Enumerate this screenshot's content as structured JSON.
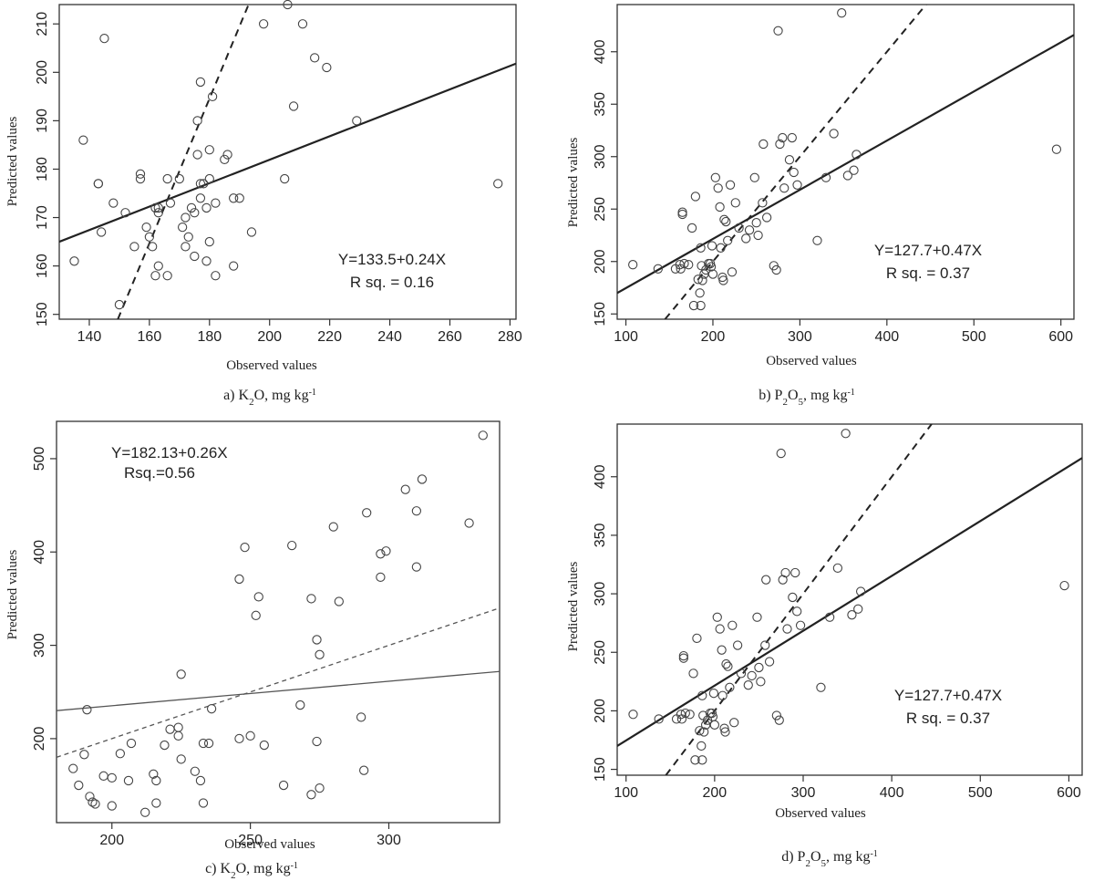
{
  "chart_data": [
    {
      "type": "scatter",
      "panel": "a",
      "caption": {
        "pre": "a) K",
        "sub": "2",
        "mid": "O, mg kg",
        "sup": "-1"
      },
      "xlabel": "Observed values",
      "ylabel": "Predicted values",
      "xlim": [
        130,
        282
      ],
      "ylim": [
        149,
        214
      ],
      "xticks": [
        140,
        160,
        180,
        200,
        220,
        240,
        260,
        280
      ],
      "yticks": [
        150,
        160,
        170,
        180,
        190,
        200,
        210
      ],
      "equation": [
        "Y=133.5+0.24X",
        "R sq. = 0.16"
      ],
      "fit_line": {
        "style": "solid",
        "points": [
          [
            130,
            165.0
          ],
          [
            282,
            201.8
          ]
        ]
      },
      "reference_line": {
        "style": "dashed",
        "points": [
          [
            149.5,
            149.0
          ],
          [
            193.0,
            214.0
          ]
        ]
      },
      "points": [
        [
          135,
          161
        ],
        [
          138,
          186
        ],
        [
          143,
          177
        ],
        [
          143,
          177
        ],
        [
          144,
          167
        ],
        [
          145,
          207
        ],
        [
          148,
          173
        ],
        [
          150,
          152
        ],
        [
          152,
          171
        ],
        [
          155,
          164
        ],
        [
          157,
          178
        ],
        [
          157,
          179
        ],
        [
          159,
          168
        ],
        [
          160,
          166
        ],
        [
          161,
          164
        ],
        [
          162,
          172
        ],
        [
          162,
          158
        ],
        [
          163,
          160
        ],
        [
          163,
          171
        ],
        [
          163,
          172
        ],
        [
          166,
          178
        ],
        [
          166,
          158
        ],
        [
          167,
          173
        ],
        [
          170,
          178
        ],
        [
          171,
          168
        ],
        [
          172,
          164
        ],
        [
          172,
          170
        ],
        [
          173,
          166
        ],
        [
          174,
          172
        ],
        [
          175,
          171
        ],
        [
          175,
          162
        ],
        [
          176,
          183
        ],
        [
          176,
          190
        ],
        [
          177,
          198
        ],
        [
          177,
          177
        ],
        [
          177,
          174
        ],
        [
          178,
          177
        ],
        [
          179,
          172
        ],
        [
          179,
          161
        ],
        [
          180,
          165
        ],
        [
          180,
          178
        ],
        [
          180,
          184
        ],
        [
          181,
          195
        ],
        [
          182,
          158
        ],
        [
          182,
          173
        ],
        [
          185,
          182
        ],
        [
          186,
          183
        ],
        [
          188,
          174
        ],
        [
          188,
          160
        ],
        [
          190,
          174
        ],
        [
          194,
          167
        ],
        [
          198,
          210
        ],
        [
          205,
          178
        ],
        [
          206,
          214
        ],
        [
          208,
          193
        ],
        [
          211,
          210
        ],
        [
          215,
          203
        ],
        [
          219,
          201
        ],
        [
          229,
          190
        ],
        [
          276,
          177
        ]
      ]
    },
    {
      "type": "scatter",
      "panel": "b",
      "caption": {
        "pre": "b) P",
        "sub": "2",
        "mid": "O",
        "sub2": "5",
        "post": ", mg kg",
        "sup": "-1"
      },
      "xlabel": "Observed values",
      "ylabel": "Predicted values",
      "xlim": [
        90,
        615
      ],
      "ylim": [
        145,
        445
      ],
      "xticks": [
        100,
        200,
        300,
        400,
        500,
        600
      ],
      "yticks": [
        150,
        200,
        250,
        300,
        350,
        400
      ],
      "equation": [
        "Y=127.7+0.47X",
        "R sq. = 0.37"
      ],
      "fit_line": {
        "style": "solid",
        "points": [
          [
            90,
            170.0
          ],
          [
            615,
            416.0
          ]
        ]
      },
      "reference_line": {
        "style": "dashed",
        "points": [
          [
            145,
            145.0
          ],
          [
            445,
            445.0
          ]
        ]
      },
      "points": [
        [
          108,
          197
        ],
        [
          137,
          193
        ],
        [
          157,
          193
        ],
        [
          162,
          197
        ],
        [
          163,
          193
        ],
        [
          165,
          247
        ],
        [
          165,
          245
        ],
        [
          167,
          198
        ],
        [
          172,
          197
        ],
        [
          176,
          232
        ],
        [
          178,
          158
        ],
        [
          180,
          262
        ],
        [
          183,
          183
        ],
        [
          185,
          170
        ],
        [
          186,
          158
        ],
        [
          186,
          213
        ],
        [
          187,
          196
        ],
        [
          188,
          182
        ],
        [
          190,
          188
        ],
        [
          192,
          192
        ],
        [
          195,
          198
        ],
        [
          197,
          198
        ],
        [
          198,
          195
        ],
        [
          199,
          215
        ],
        [
          200,
          188
        ],
        [
          203,
          280
        ],
        [
          206,
          270
        ],
        [
          208,
          252
        ],
        [
          209,
          213
        ],
        [
          211,
          185
        ],
        [
          212,
          182
        ],
        [
          213,
          240
        ],
        [
          215,
          238
        ],
        [
          217,
          220
        ],
        [
          220,
          273
        ],
        [
          222,
          190
        ],
        [
          226,
          256
        ],
        [
          230,
          232
        ],
        [
          238,
          222
        ],
        [
          242,
          230
        ],
        [
          248,
          280
        ],
        [
          250,
          237
        ],
        [
          252,
          225
        ],
        [
          257,
          256
        ],
        [
          258,
          312
        ],
        [
          262,
          242
        ],
        [
          270,
          196
        ],
        [
          273,
          192
        ],
        [
          275,
          420
        ],
        [
          277,
          312
        ],
        [
          280,
          318
        ],
        [
          282,
          270
        ],
        [
          288,
          297
        ],
        [
          291,
          318
        ],
        [
          293,
          285
        ],
        [
          297,
          273
        ],
        [
          320,
          220
        ],
        [
          330,
          280
        ],
        [
          339,
          322
        ],
        [
          348,
          437
        ],
        [
          355,
          282
        ],
        [
          362,
          287
        ],
        [
          365,
          302
        ],
        [
          595,
          307
        ]
      ]
    },
    {
      "type": "scatter",
      "panel": "c",
      "caption": {
        "pre": "c) K",
        "sub": "2",
        "mid": "O, mg kg",
        "sup": "-1"
      },
      "xlabel": "Observed values",
      "ylabel": "Predicted values",
      "xlim": [
        180,
        340
      ],
      "ylim": [
        110,
        540
      ],
      "xticks": [
        200,
        250,
        300
      ],
      "yticks": [
        200,
        300,
        400,
        500
      ],
      "equation": [
        "Y=182.13+0.26X",
        "Rsq.=0.56"
      ],
      "fit_line": {
        "style": "solid",
        "points": [
          [
            180,
            230.0
          ],
          [
            340,
            272.0
          ]
        ]
      },
      "reference_line": {
        "style": "dashed",
        "points": [
          [
            180,
            180.0
          ],
          [
            340,
            340.0
          ]
        ]
      },
      "points": [
        [
          186,
          168
        ],
        [
          188,
          150
        ],
        [
          190,
          183
        ],
        [
          191,
          231
        ],
        [
          192,
          138
        ],
        [
          193,
          132
        ],
        [
          194,
          130
        ],
        [
          197,
          160
        ],
        [
          200,
          158
        ],
        [
          200,
          128
        ],
        [
          203,
          184
        ],
        [
          206,
          155
        ],
        [
          207,
          195
        ],
        [
          212,
          121
        ],
        [
          215,
          162
        ],
        [
          216,
          131
        ],
        [
          216,
          155
        ],
        [
          219,
          193
        ],
        [
          221,
          210
        ],
        [
          224,
          203
        ],
        [
          224,
          212
        ],
        [
          225,
          178
        ],
        [
          225,
          269
        ],
        [
          230,
          165
        ],
        [
          232,
          155
        ],
        [
          233,
          195
        ],
        [
          233,
          131
        ],
        [
          235,
          195
        ],
        [
          236,
          232
        ],
        [
          246,
          200
        ],
        [
          246,
          371
        ],
        [
          248,
          405
        ],
        [
          250,
          203
        ],
        [
          252,
          332
        ],
        [
          253,
          352
        ],
        [
          255,
          193
        ],
        [
          262,
          150
        ],
        [
          265,
          407
        ],
        [
          268,
          236
        ],
        [
          272,
          140
        ],
        [
          272,
          350
        ],
        [
          274,
          197
        ],
        [
          274,
          306
        ],
        [
          275,
          290
        ],
        [
          275,
          147
        ],
        [
          280,
          427
        ],
        [
          282,
          347
        ],
        [
          290,
          223
        ],
        [
          291,
          166
        ],
        [
          292,
          442
        ],
        [
          297,
          373
        ],
        [
          297,
          398
        ],
        [
          299,
          401
        ],
        [
          306,
          467
        ],
        [
          310,
          444
        ],
        [
          310,
          384
        ],
        [
          312,
          478
        ],
        [
          329,
          431
        ],
        [
          334,
          525
        ]
      ]
    },
    {
      "type": "scatter",
      "panel": "d",
      "caption": {
        "pre": "d) P",
        "sub": "2",
        "mid": "O",
        "sub2": "5",
        "post": ", mg kg",
        "sup": "-1"
      },
      "xlabel": "Observed values",
      "ylabel": "Predicted values",
      "xlim": [
        90,
        615
      ],
      "ylim": [
        145,
        445
      ],
      "xticks": [
        100,
        200,
        300,
        400,
        500,
        600
      ],
      "yticks": [
        150,
        200,
        250,
        300,
        350,
        400
      ],
      "equation": [
        "Y=127.7+0.47X",
        "R sq. = 0.37"
      ],
      "fit_line": {
        "style": "solid",
        "points": [
          [
            90,
            170.0
          ],
          [
            615,
            416.0
          ]
        ]
      },
      "reference_line": {
        "style": "dashed",
        "points": [
          [
            145,
            145.0
          ],
          [
            445,
            445.0
          ]
        ]
      },
      "points": [
        [
          108,
          197
        ],
        [
          137,
          193
        ],
        [
          157,
          193
        ],
        [
          162,
          197
        ],
        [
          163,
          193
        ],
        [
          165,
          247
        ],
        [
          165,
          245
        ],
        [
          167,
          198
        ],
        [
          172,
          197
        ],
        [
          176,
          232
        ],
        [
          178,
          158
        ],
        [
          180,
          262
        ],
        [
          183,
          183
        ],
        [
          185,
          170
        ],
        [
          186,
          158
        ],
        [
          186,
          213
        ],
        [
          187,
          196
        ],
        [
          188,
          182
        ],
        [
          190,
          188
        ],
        [
          192,
          192
        ],
        [
          195,
          198
        ],
        [
          197,
          198
        ],
        [
          198,
          195
        ],
        [
          199,
          215
        ],
        [
          200,
          188
        ],
        [
          203,
          280
        ],
        [
          206,
          270
        ],
        [
          208,
          252
        ],
        [
          209,
          213
        ],
        [
          211,
          185
        ],
        [
          212,
          182
        ],
        [
          213,
          240
        ],
        [
          215,
          238
        ],
        [
          217,
          220
        ],
        [
          220,
          273
        ],
        [
          222,
          190
        ],
        [
          226,
          256
        ],
        [
          230,
          232
        ],
        [
          238,
          222
        ],
        [
          242,
          230
        ],
        [
          248,
          280
        ],
        [
          250,
          237
        ],
        [
          252,
          225
        ],
        [
          257,
          256
        ],
        [
          258,
          312
        ],
        [
          262,
          242
        ],
        [
          270,
          196
        ],
        [
          273,
          192
        ],
        [
          275,
          420
        ],
        [
          277,
          312
        ],
        [
          280,
          318
        ],
        [
          282,
          270
        ],
        [
          288,
          297
        ],
        [
          291,
          318
        ],
        [
          293,
          285
        ],
        [
          297,
          273
        ],
        [
          320,
          220
        ],
        [
          330,
          280
        ],
        [
          339,
          322
        ],
        [
          348,
          437
        ],
        [
          355,
          282
        ],
        [
          362,
          287
        ],
        [
          365,
          302
        ],
        [
          595,
          307
        ]
      ]
    }
  ]
}
